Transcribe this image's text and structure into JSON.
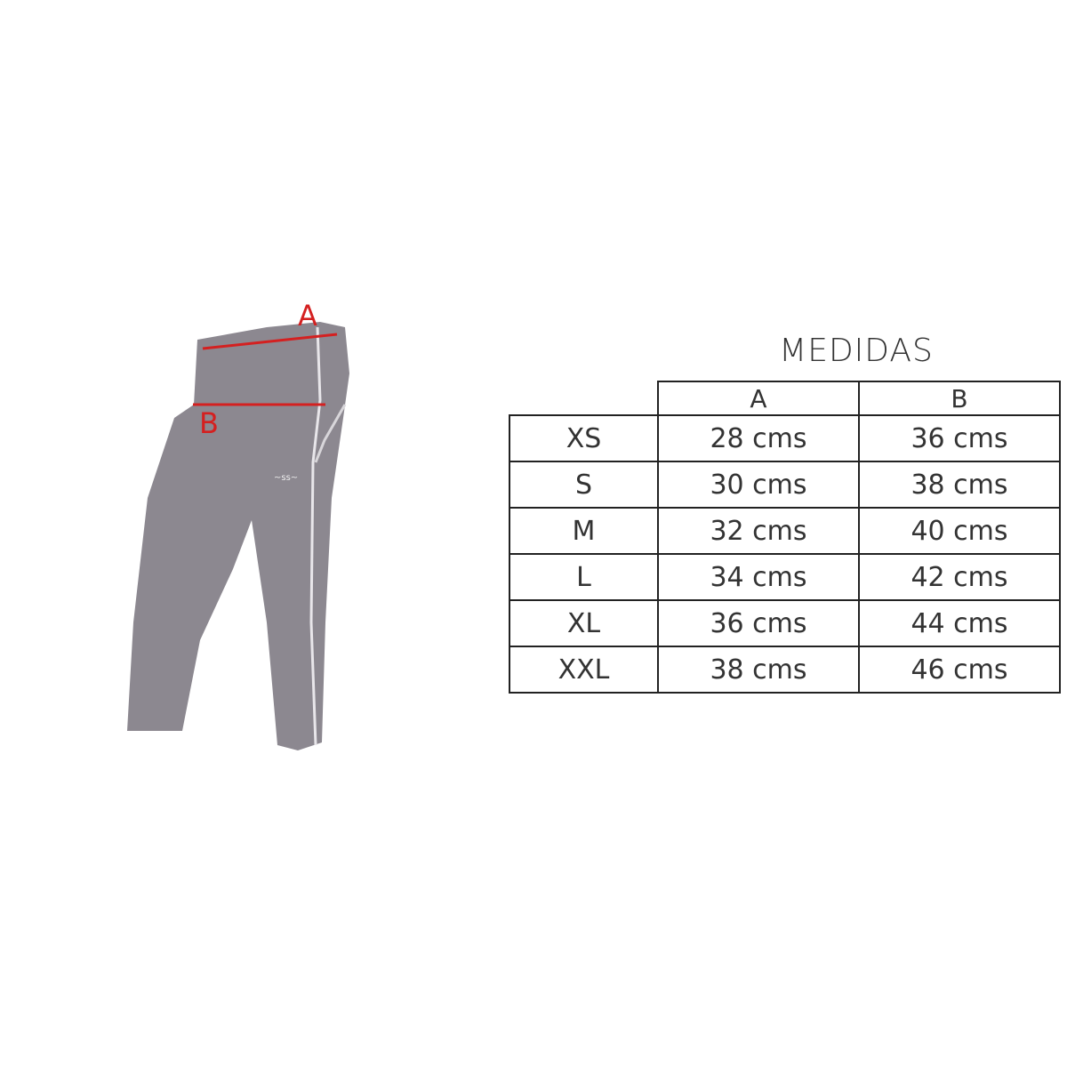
{
  "diagram": {
    "label_a": "A",
    "label_b": "B",
    "garment_color": "#8c8890",
    "measure_line_color": "#d42020"
  },
  "table": {
    "title": "MEDIDAS",
    "columns": [
      "A",
      "B"
    ],
    "rows": [
      {
        "size": "XS",
        "a": "28 cms",
        "b": "36  cms"
      },
      {
        "size": "S",
        "a": "30  cms",
        "b": "38  cms"
      },
      {
        "size": "M",
        "a": "32 cms",
        "b": "40  cms"
      },
      {
        "size": "L",
        "a": "34 cms",
        "b": "42  cms"
      },
      {
        "size": "XL",
        "a": "36 cms",
        "b": "44 cms"
      },
      {
        "size": "XXL",
        "a": "38 cms",
        "b": "46 cms"
      }
    ]
  }
}
